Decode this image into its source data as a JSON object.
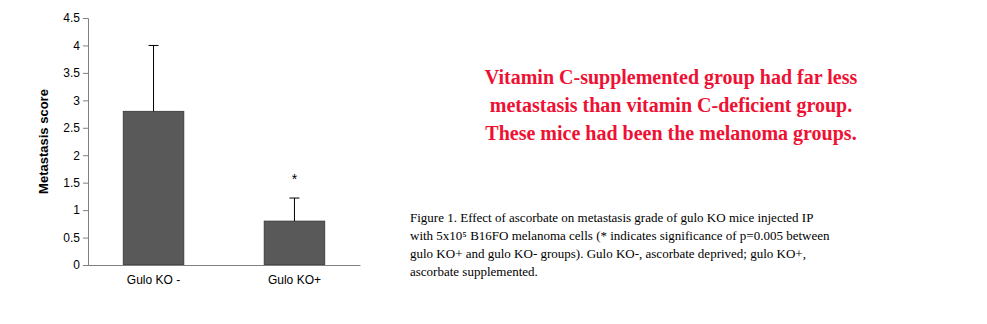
{
  "chart_data": {
    "type": "bar",
    "categories": [
      "Gulo KO -",
      "Gulo KO+"
    ],
    "values": [
      2.8,
      0.8
    ],
    "errors": [
      1.2,
      0.42
    ],
    "significance_labels": [
      null,
      "*"
    ],
    "color": "#595959",
    "y_label": "Metastasis score",
    "ylim": [
      0,
      4.5
    ],
    "yticks": [
      0,
      0.5,
      1,
      1.5,
      2,
      2.5,
      3,
      3.5,
      4,
      4.5
    ],
    "grid": false,
    "annotations": [
      "Vitamin C-supplemented group had far less",
      "metastasis than vitamin C-deficient group.",
      "These mice had been the melanoma groups."
    ],
    "caption": [
      "Figure 1. Effect of ascorbate on metastasis grade of gulo KO mice injected IP",
      "with 5x10⁵ B16FO melanoma cells (* indicates significance of p=0.005 between",
      "gulo KO+ and gulo KO- groups). Gulo KO-, ascorbate deprived; gulo KO+,",
      "ascorbate supplemented."
    ]
  }
}
